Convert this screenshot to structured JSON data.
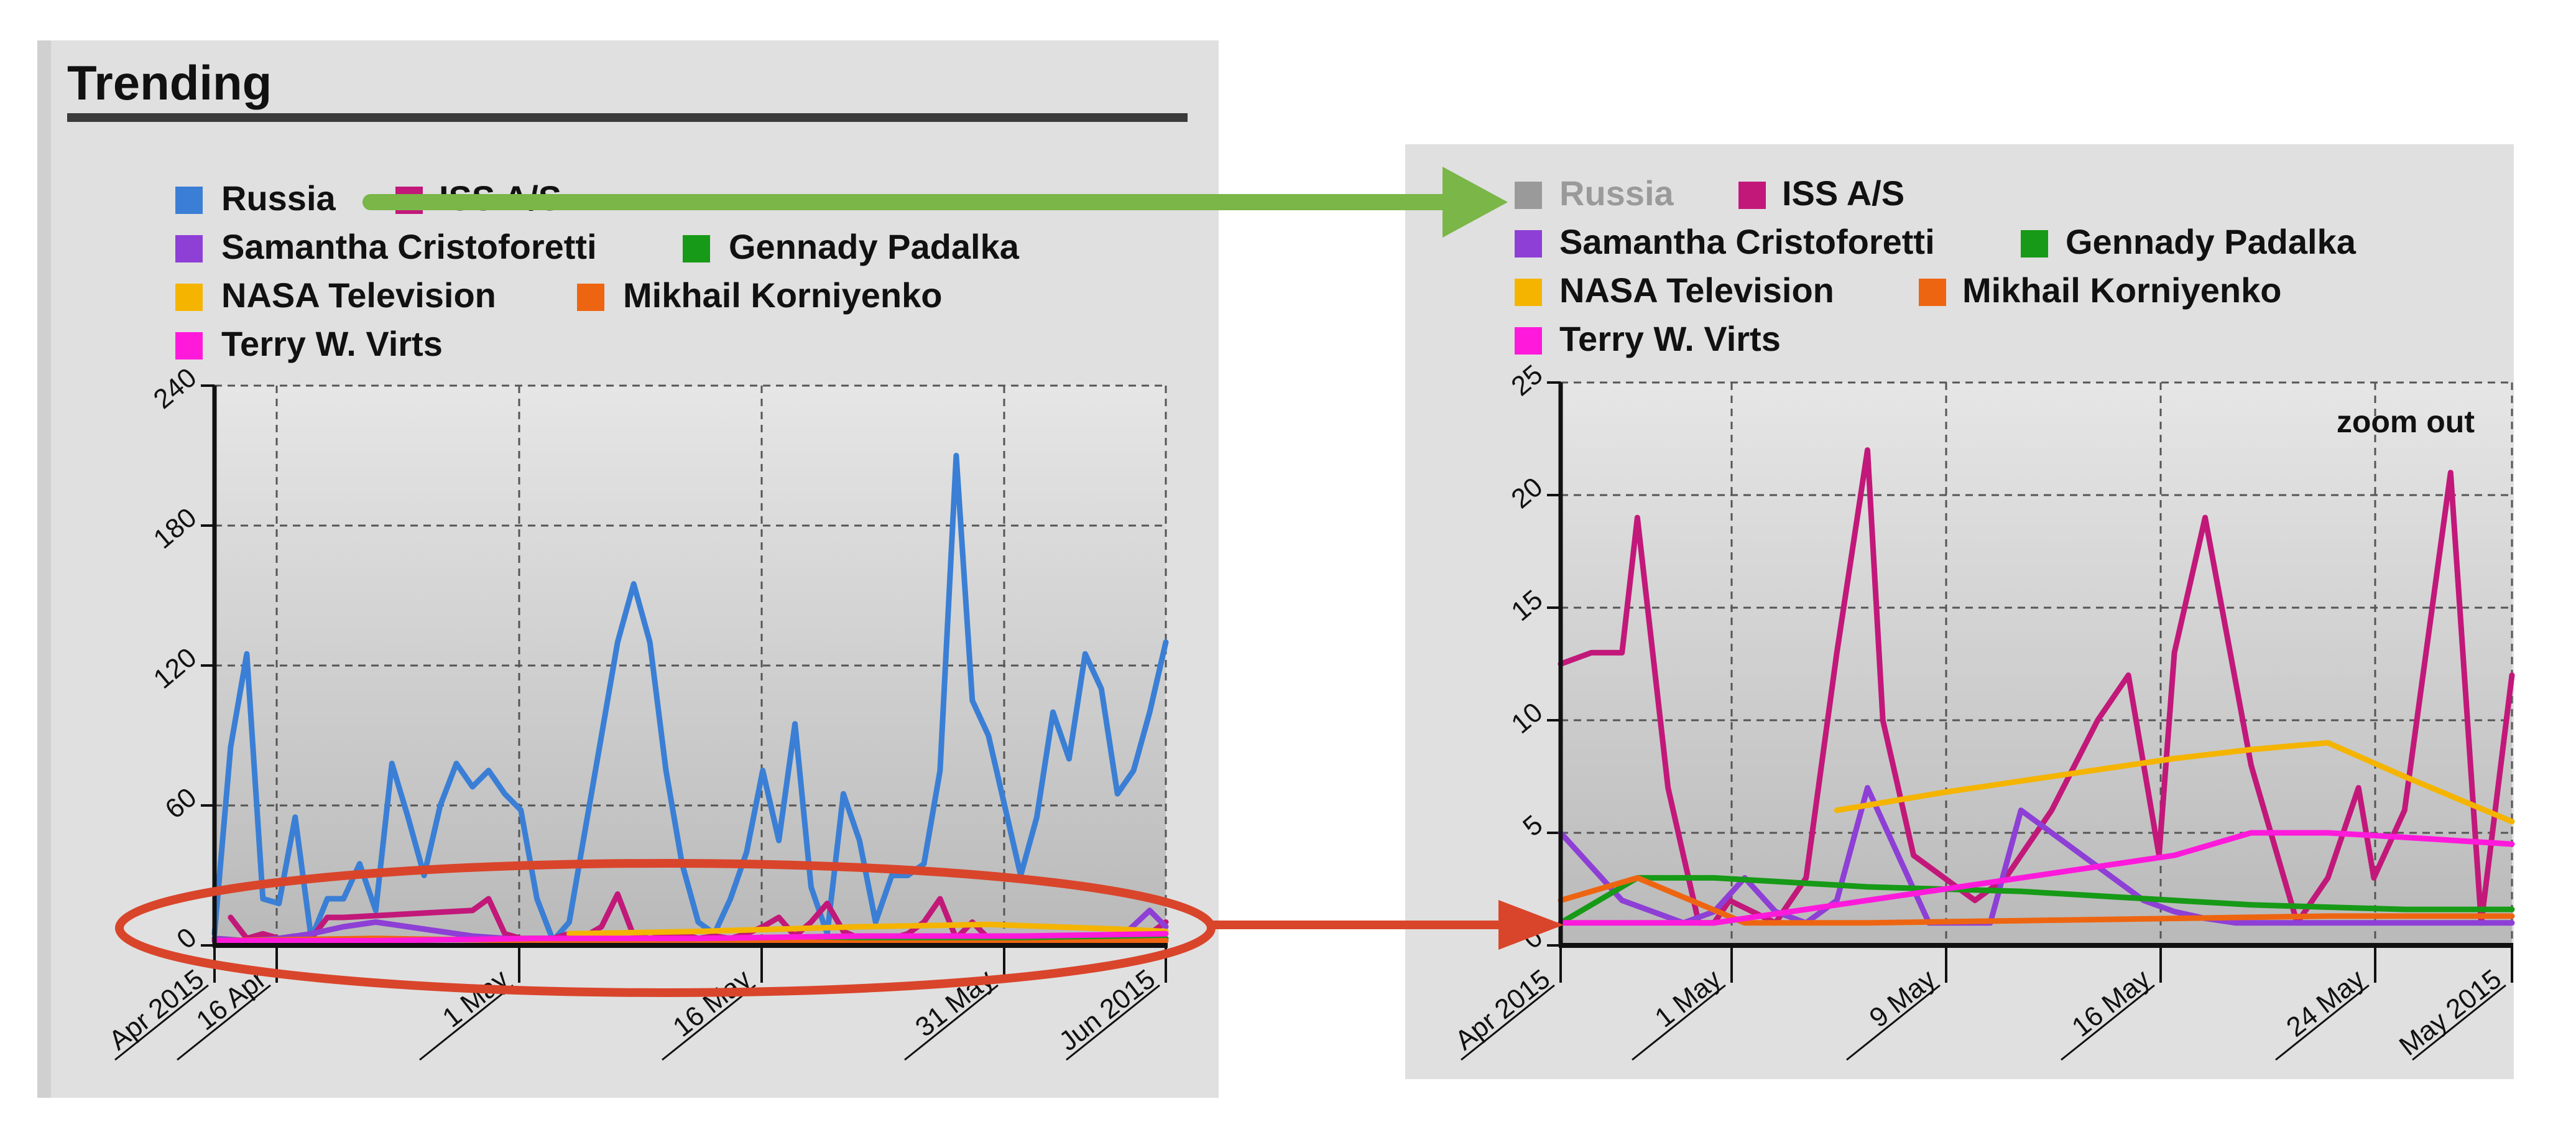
{
  "panel_title": "Trending",
  "legend": [
    {
      "label": "Russia",
      "color": "#3a7fd5"
    },
    {
      "label": "ISS A/S",
      "color": "#c2187a"
    },
    {
      "label": "Samantha Cristoforetti",
      "color": "#8e3fd6"
    },
    {
      "label": "Gennady Padalka",
      "color": "#179a17"
    },
    {
      "label": "NASA Television",
      "color": "#f4b400"
    },
    {
      "label": "Mikhail Korniyenko",
      "color": "#ee6511"
    },
    {
      "label": "Terry W. Virts",
      "color": "#ff1adb"
    }
  ],
  "right_chart": {
    "hidden_series_color": "#9a9a9a",
    "zoom_label": "zoom out"
  },
  "annotations": {
    "arrow_green_color": "#7ab648",
    "arrow_red_color": "#d9452b"
  },
  "chart_data": [
    {
      "type": "line",
      "title": "Trending",
      "x_ticks": [
        "Apr 2015",
        "16 Apr",
        "1 May",
        "16 May",
        "31 May",
        "Jun 2015"
      ],
      "y_ticks": [
        "0",
        "60",
        "120",
        "180",
        "240"
      ],
      "xlim": [
        0,
        59
      ],
      "ylim": [
        0,
        240
      ],
      "grid": true,
      "series": [
        {
          "name": "Russia",
          "color": "#3a7fd5",
          "x": [
            0,
            1,
            2,
            3,
            4,
            5,
            6,
            7,
            8,
            9,
            10,
            11,
            12,
            13,
            14,
            15,
            16,
            17,
            18,
            19,
            20,
            21,
            22,
            23,
            24,
            25,
            26,
            27,
            28,
            29,
            30,
            31,
            32,
            33,
            34,
            35,
            36,
            37,
            38,
            39,
            40,
            41,
            42,
            43,
            44,
            45,
            46,
            47,
            48,
            49,
            50,
            51,
            52,
            53,
            54,
            55,
            56,
            57,
            58,
            59
          ],
          "y": [
            5,
            85,
            125,
            20,
            18,
            55,
            3,
            20,
            20,
            35,
            15,
            78,
            55,
            30,
            60,
            78,
            68,
            75,
            65,
            58,
            20,
            2,
            10,
            50,
            90,
            130,
            155,
            130,
            75,
            35,
            10,
            5,
            20,
            40,
            75,
            45,
            95,
            25,
            5,
            65,
            45,
            10,
            30,
            30,
            35,
            75,
            210,
            105,
            90,
            60,
            30,
            55,
            100,
            80,
            125,
            110,
            65,
            75,
            100,
            130
          ]
        },
        {
          "name": "ISS A/S",
          "color": "#c2187a",
          "x": [
            1,
            2,
            3,
            4,
            5,
            6,
            7,
            8,
            16,
            17,
            18,
            19,
            21,
            22,
            23,
            24,
            25,
            26,
            27,
            28,
            29,
            30,
            31,
            32,
            33,
            34,
            35,
            36,
            37,
            38,
            39,
            40,
            41,
            42,
            43,
            44,
            45,
            46,
            47,
            48,
            49,
            50,
            51,
            52,
            53,
            54,
            55,
            56,
            57,
            58,
            59
          ],
          "y": [
            12,
            3,
            5,
            3,
            4,
            3,
            12,
            12,
            15,
            20,
            5,
            3,
            3,
            5,
            4,
            8,
            22,
            4,
            3,
            4,
            5,
            3,
            4,
            3,
            5,
            8,
            12,
            4,
            10,
            18,
            6,
            3,
            4,
            3,
            5,
            10,
            20,
            3,
            10,
            3,
            4,
            4,
            3,
            4,
            3,
            4,
            3,
            4,
            3,
            5,
            10
          ]
        },
        {
          "name": "Samantha Cristoforetti",
          "color": "#8e3fd6",
          "x": [
            0,
            2,
            4,
            6,
            8,
            10,
            12,
            14,
            16,
            18,
            20,
            22,
            24,
            26,
            28,
            30,
            32,
            34,
            36,
            38,
            40,
            42,
            44,
            46,
            48,
            50,
            52,
            54,
            56,
            58,
            59
          ],
          "y": [
            3,
            2,
            3,
            5,
            8,
            10,
            8,
            6,
            4,
            3,
            2,
            2,
            3,
            2,
            2,
            3,
            2,
            2,
            3,
            2,
            2,
            2,
            3,
            2,
            2,
            2,
            2,
            3,
            2,
            15,
            8
          ]
        },
        {
          "name": "Gennady Padalka",
          "color": "#179a17",
          "x": [
            0,
            10,
            20,
            30,
            40,
            50,
            59
          ],
          "y": [
            2,
            2,
            3,
            2,
            2,
            2,
            3
          ]
        },
        {
          "name": "NASA Television",
          "color": "#f4b400",
          "x": [
            22,
            30,
            40,
            48,
            56,
            59
          ],
          "y": [
            5,
            6,
            8,
            9,
            7,
            6
          ]
        },
        {
          "name": "Mikhail Korniyenko",
          "color": "#ee6511",
          "x": [
            0,
            10,
            20,
            30,
            40,
            50,
            59
          ],
          "y": [
            2,
            3,
            2,
            2,
            1,
            1,
            2
          ]
        },
        {
          "name": "Terry W. Virts",
          "color": "#ff1adb",
          "x": [
            0,
            10,
            20,
            30,
            40,
            50,
            59
          ],
          "y": [
            2,
            2,
            3,
            3,
            4,
            4,
            5
          ]
        }
      ]
    },
    {
      "type": "line",
      "x_ticks": [
        "Apr 2015",
        "1 May",
        "9 May",
        "16 May",
        "24 May",
        "May 2015"
      ],
      "y_ticks": [
        "0",
        "5",
        "10",
        "15",
        "20",
        "25"
      ],
      "xlim": [
        0,
        62
      ],
      "ylim": [
        0,
        25
      ],
      "grid": true,
      "series": [
        {
          "name": "ISS A/S",
          "color": "#c2187a",
          "x": [
            0,
            2,
            4,
            5,
            7,
            9,
            10,
            11,
            14,
            16,
            18,
            20,
            21,
            23,
            25,
            27,
            29,
            32,
            35,
            37,
            39,
            40,
            42,
            45,
            48,
            50,
            52,
            53,
            55,
            58,
            60,
            62
          ],
          "y": [
            12.5,
            13,
            13,
            19,
            7,
            1,
            1,
            2,
            1,
            3,
            13,
            22,
            10,
            4,
            3,
            2,
            3,
            6,
            10,
            12,
            4,
            13,
            19,
            8,
            1,
            3,
            7,
            3,
            6,
            21,
            1,
            12
          ]
        },
        {
          "name": "Samantha Cristoforetti",
          "color": "#8e3fd6",
          "x": [
            0,
            2,
            4,
            6,
            8,
            10,
            12,
            14,
            16,
            18,
            20,
            22,
            24,
            26,
            28,
            30,
            32,
            34,
            36,
            38,
            40,
            42,
            44,
            46,
            48,
            50,
            52,
            54,
            56,
            58,
            60,
            62
          ],
          "y": [
            5,
            3.5,
            2,
            1.5,
            1,
            1.5,
            3,
            1.5,
            1,
            2,
            7,
            4,
            1,
            1,
            1,
            6,
            5,
            4,
            3,
            2,
            1.5,
            1.2,
            1,
            1,
            1,
            1,
            1,
            1,
            1,
            1,
            1,
            1
          ]
        },
        {
          "name": "Gennady Padalka",
          "color": "#179a17",
          "x": [
            0,
            5,
            10,
            15,
            20,
            25,
            30,
            35,
            40,
            45,
            50,
            55,
            60,
            62
          ],
          "y": [
            1,
            3,
            3,
            2.8,
            2.6,
            2.5,
            2.4,
            2.2,
            2.0,
            1.8,
            1.7,
            1.6,
            1.6,
            1.6
          ]
        },
        {
          "name": "NASA Television",
          "color": "#f4b400",
          "x": [
            18,
            25,
            30,
            35,
            40,
            45,
            50,
            55,
            62
          ],
          "y": [
            6,
            6.8,
            7.3,
            7.8,
            8.3,
            8.7,
            9,
            7.5,
            5.5
          ]
        },
        {
          "name": "Mikhail Korniyenko",
          "color": "#ee6511",
          "x": [
            0,
            5,
            12,
            20,
            30,
            40,
            50,
            62
          ],
          "y": [
            2,
            3,
            1,
            1,
            1.1,
            1.2,
            1.3,
            1.3
          ]
        },
        {
          "name": "Terry W. Virts",
          "color": "#ff1adb",
          "x": [
            0,
            10,
            20,
            30,
            40,
            45,
            50,
            55,
            62
          ],
          "y": [
            1,
            1,
            2,
            3,
            4,
            5,
            5,
            4.8,
            4.5
          ]
        }
      ]
    }
  ]
}
